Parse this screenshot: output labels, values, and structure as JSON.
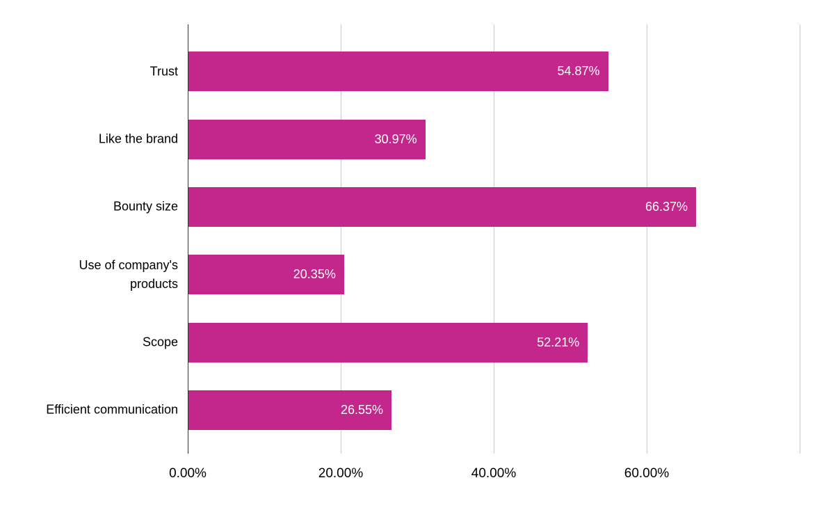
{
  "chart_data": {
    "type": "bar",
    "orientation": "horizontal",
    "title": "",
    "xlabel": "",
    "ylabel": "",
    "categories": [
      "Trust",
      "Like the brand",
      "Bounty size",
      "Use of company's products",
      "Scope",
      "Efficient communication"
    ],
    "values": [
      54.87,
      30.97,
      66.37,
      20.35,
      52.21,
      26.55
    ],
    "value_labels": [
      "54.87%",
      "30.97%",
      "66.37%",
      "20.35%",
      "52.21%",
      "26.55%"
    ],
    "xlim": [
      0,
      80
    ],
    "x_ticks": [
      {
        "value": 0,
        "label": "0.00%"
      },
      {
        "value": 20,
        "label": "20.00%"
      },
      {
        "value": 40,
        "label": "40.00%"
      },
      {
        "value": 60,
        "label": "60.00%"
      },
      {
        "value": 80,
        "label": ""
      }
    ],
    "grid": true,
    "legend": "none",
    "colors": {
      "bar": "#C3278C",
      "value_label": "#ffffff",
      "gridline": "#cccccc",
      "axis_line": "#333333",
      "tick_label": "#000000",
      "background": "#ffffff"
    }
  }
}
